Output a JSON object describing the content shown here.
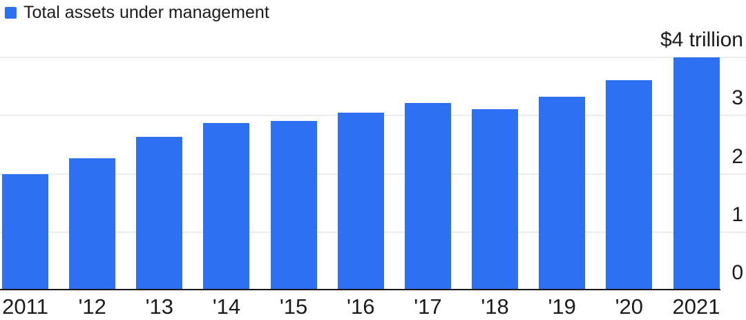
{
  "legend": {
    "label": "Total assets under management"
  },
  "colors": {
    "bar": "#2d70f2",
    "legend_swatch": "#2d70f2",
    "axis_line": "#161616",
    "gridline": "#ececec",
    "text": "#1b1b1b",
    "background": "#ffffff"
  },
  "chart_data": {
    "type": "bar",
    "title": "Total assets under management",
    "categories": [
      "2011",
      "'12",
      "'13",
      "'14",
      "'15",
      "'16",
      "'17",
      "'18",
      "'19",
      "'20",
      "2021"
    ],
    "values": [
      2.0,
      2.27,
      2.63,
      2.87,
      2.91,
      3.05,
      3.22,
      3.11,
      3.32,
      3.61,
      4.0
    ],
    "series_name": "Total assets under management",
    "xlabel": "",
    "ylabel": "",
    "ylim": [
      0,
      4
    ],
    "yticks": [
      {
        "value": 4,
        "label": "$4 trillion"
      },
      {
        "value": 3,
        "label": "3"
      },
      {
        "value": 2,
        "label": "2"
      },
      {
        "value": 1,
        "label": "1"
      },
      {
        "value": 0,
        "label": "0"
      }
    ],
    "value_axis_side": "right",
    "grid": "horizontal",
    "legend_position": "top-left"
  }
}
